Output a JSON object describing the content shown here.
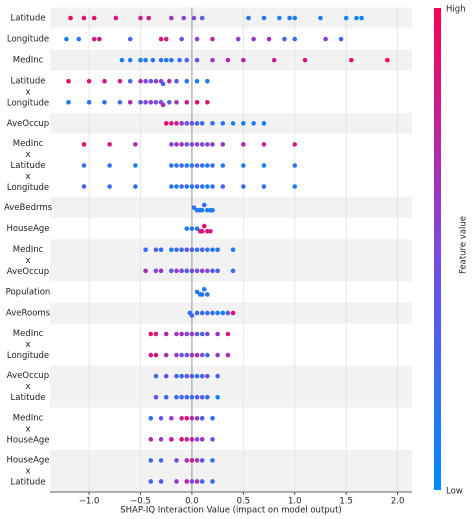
{
  "chart_data": {
    "type": "beeswarm",
    "xlabel": "SHAP-IQ Interaction Value (impact on model output)",
    "xlim": [
      -1.38,
      2.14
    ],
    "xticks": [
      {
        "value": -1.0,
        "label": "−1.0"
      },
      {
        "value": -0.5,
        "label": "−0.5"
      },
      {
        "value": 0.0,
        "label": "0.0"
      },
      {
        "value": 0.5,
        "label": "0.5"
      },
      {
        "value": 1.0,
        "label": "1.0"
      },
      {
        "value": 1.5,
        "label": "1.5"
      },
      {
        "value": 2.0,
        "label": "2.0"
      }
    ],
    "colorbar": {
      "label": "Feature value",
      "high": "High",
      "low": "Low",
      "colors": [
        "#008bfb",
        "#7b48e0",
        "#ff0051"
      ]
    },
    "band_color": "#f2f2f2",
    "groups": [
      {
        "label": [
          "Latitude"
        ],
        "rows": [
          {
            "x": [
              -1.18,
              -1.05,
              -0.95,
              -0.74,
              -0.5,
              -0.42,
              -0.2,
              -0.08,
              0.02,
              0.1,
              0.55,
              0.7,
              0.85,
              0.95,
              1.0,
              1.25,
              1.5,
              1.6,
              1.65
            ],
            "c": [
              0.95,
              0.9,
              0.9,
              0.85,
              0.8,
              0.8,
              0.6,
              0.5,
              0.5,
              0.4,
              0.1,
              0.12,
              0.1,
              0.15,
              0.1,
              0.1,
              0.05,
              0.05,
              0.05
            ]
          }
        ]
      },
      {
        "label": [
          "Longitude"
        ],
        "rows": [
          {
            "x": [
              -1.22,
              -1.1,
              -0.95,
              -0.9,
              -0.6,
              -0.3,
              -0.25,
              -0.1,
              0.05,
              0.2,
              0.45,
              0.6,
              0.75,
              0.9,
              1.0,
              1.3,
              1.45
            ],
            "c": [
              0.1,
              0.15,
              0.8,
              0.85,
              0.3,
              0.85,
              0.8,
              0.5,
              0.6,
              0.7,
              0.55,
              0.6,
              0.65,
              0.3,
              0.2,
              0.6,
              0.3
            ]
          }
        ]
      },
      {
        "label": [
          "MedInc"
        ],
        "rows": [
          {
            "x": [
              -0.68,
              -0.6,
              -0.5,
              -0.45,
              -0.38,
              -0.3,
              -0.25,
              -0.2,
              -0.12,
              -0.05,
              0.05,
              0.2,
              0.35,
              0.5,
              0.8,
              1.1,
              1.55,
              1.9
            ],
            "c": [
              0.1,
              0.1,
              0.1,
              0.15,
              0.15,
              0.2,
              0.1,
              0.15,
              0.2,
              0.3,
              0.45,
              0.6,
              0.7,
              0.75,
              0.8,
              0.85,
              0.9,
              1.0
            ]
          }
        ]
      },
      {
        "label": [
          "Latitude",
          "x",
          "Longitude"
        ],
        "rows": [
          {
            "x": [
              -1.2,
              -1.0,
              -0.85,
              -0.7,
              -0.6,
              -0.5,
              -0.45,
              -0.4,
              -0.35,
              -0.3,
              -0.28,
              -0.22,
              -0.15,
              -0.05,
              0.05,
              0.15
            ],
            "c": [
              0.95,
              0.9,
              0.85,
              0.8,
              0.3,
              0.7,
              0.5,
              0.4,
              0.6,
              0.5,
              0.3,
              0.7,
              0.4,
              0.2,
              0.1,
              0.15
            ]
          },
          {
            "x": [
              -1.2,
              -1.0,
              -0.85,
              -0.7,
              -0.6,
              -0.5,
              -0.45,
              -0.4,
              -0.35,
              -0.3,
              -0.28,
              -0.22,
              -0.15,
              -0.05,
              0.05,
              0.15
            ],
            "c": [
              0.1,
              0.2,
              0.2,
              0.25,
              0.7,
              0.4,
              0.5,
              0.6,
              0.4,
              0.5,
              0.7,
              0.3,
              0.6,
              0.8,
              0.9,
              0.85
            ]
          }
        ]
      },
      {
        "label": [
          "AveOccup"
        ],
        "rows": [
          {
            "x": [
              -0.25,
              -0.2,
              -0.15,
              -0.1,
              -0.05,
              0.0,
              0.05,
              0.1,
              0.2,
              0.3,
              0.4,
              0.5,
              0.6,
              0.7
            ],
            "c": [
              0.9,
              0.85,
              0.8,
              0.6,
              0.5,
              0.4,
              0.3,
              0.25,
              0.2,
              0.15,
              0.1,
              0.1,
              0.1,
              0.05
            ]
          }
        ]
      },
      {
        "label": [
          "MedInc",
          "x",
          "Latitude",
          "x",
          "Longitude"
        ],
        "rows": [
          {
            "x": [
              -1.05,
              -0.8,
              -0.55,
              -0.2,
              -0.15,
              -0.1,
              -0.05,
              0.0,
              0.05,
              0.1,
              0.15,
              0.2,
              0.3,
              0.5,
              0.7,
              1.0
            ],
            "c": [
              0.9,
              0.85,
              0.7,
              0.5,
              0.6,
              0.7,
              0.4,
              0.5,
              0.6,
              0.45,
              0.5,
              0.55,
              0.6,
              0.7,
              0.8,
              0.85
            ]
          },
          {
            "x": [
              -1.05,
              -0.8,
              -0.55,
              -0.2,
              -0.15,
              -0.1,
              -0.05,
              0.0,
              0.05,
              0.1,
              0.15,
              0.2,
              0.3,
              0.5,
              0.7,
              1.0
            ],
            "c": [
              0.2,
              0.2,
              0.1,
              0.2,
              0.15,
              0.3,
              0.1,
              0.2,
              0.3,
              0.15,
              0.1,
              0.2,
              0.15,
              0.1,
              0.1,
              0.2
            ]
          },
          {
            "x": [
              -1.05,
              -0.8,
              -0.55,
              -0.2,
              -0.15,
              -0.1,
              -0.05,
              0.0,
              0.05,
              0.1,
              0.15,
              0.2,
              0.3,
              0.5,
              0.7,
              1.0
            ],
            "c": [
              0.3,
              0.2,
              0.2,
              0.2,
              0.1,
              0.3,
              0.15,
              0.2,
              0.25,
              0.2,
              0.1,
              0.2,
              0.3,
              0.2,
              0.2,
              0.1
            ]
          }
        ]
      },
      {
        "label": [
          "AveBedrms"
        ],
        "rows": [
          {
            "x": [
              0.02,
              0.05,
              0.08,
              0.1,
              0.12,
              0.15,
              0.18,
              0.2
            ],
            "c": [
              0.2,
              0.1,
              0.15,
              0.1,
              0.2,
              0.1,
              0.1,
              0.15
            ]
          }
        ]
      },
      {
        "label": [
          "HouseAge"
        ],
        "rows": [
          {
            "x": [
              -0.05,
              0.0,
              0.05,
              0.08,
              0.1,
              0.12,
              0.15,
              0.18
            ],
            "c": [
              0.1,
              0.15,
              0.2,
              0.8,
              0.85,
              0.9,
              0.9,
              0.8
            ]
          }
        ]
      },
      {
        "label": [
          "MedInc",
          "x",
          "AveOccup"
        ],
        "rows": [
          {
            "x": [
              -0.45,
              -0.35,
              -0.3,
              -0.2,
              -0.15,
              -0.1,
              -0.05,
              0.0,
              0.05,
              0.1,
              0.15,
              0.2,
              0.25,
              0.4
            ],
            "c": [
              0.2,
              0.3,
              0.2,
              0.1,
              0.3,
              0.2,
              0.4,
              0.3,
              0.2,
              0.3,
              0.2,
              0.1,
              0.2,
              0.1
            ]
          },
          {
            "x": [
              -0.45,
              -0.35,
              -0.3,
              -0.2,
              -0.15,
              -0.1,
              -0.05,
              0.0,
              0.05,
              0.1,
              0.15,
              0.2,
              0.25,
              0.4
            ],
            "c": [
              0.7,
              0.5,
              0.6,
              0.4,
              0.6,
              0.5,
              0.3,
              0.5,
              0.4,
              0.6,
              0.5,
              0.4,
              0.3,
              0.2
            ]
          }
        ]
      },
      {
        "label": [
          "Population"
        ],
        "rows": [
          {
            "x": [
              0.05,
              0.08,
              0.1,
              0.12,
              0.15
            ],
            "c": [
              0.1,
              0.2,
              0.15,
              0.1,
              0.2
            ]
          }
        ]
      },
      {
        "label": [
          "AveRooms"
        ],
        "rows": [
          {
            "x": [
              -0.02,
              0.0,
              0.05,
              0.1,
              0.15,
              0.2,
              0.25,
              0.3,
              0.35,
              0.4
            ],
            "c": [
              0.2,
              0.3,
              0.2,
              0.25,
              0.2,
              0.2,
              0.15,
              0.1,
              0.3,
              0.9
            ]
          }
        ]
      },
      {
        "label": [
          "MedInc",
          "x",
          "Longitude"
        ],
        "rows": [
          {
            "x": [
              -0.4,
              -0.35,
              -0.25,
              -0.15,
              -0.1,
              -0.05,
              0.0,
              0.05,
              0.1,
              0.15,
              0.25,
              0.35
            ],
            "c": [
              0.9,
              0.8,
              0.7,
              0.6,
              0.7,
              0.5,
              0.6,
              0.4,
              0.3,
              0.5,
              0.6,
              0.8
            ]
          },
          {
            "x": [
              -0.4,
              -0.35,
              -0.25,
              -0.15,
              -0.1,
              -0.05,
              0.0,
              0.05,
              0.1,
              0.15,
              0.25,
              0.35
            ],
            "c": [
              0.8,
              0.9,
              0.7,
              0.6,
              0.4,
              0.5,
              0.6,
              0.7,
              0.5,
              0.3,
              0.6,
              0.7
            ]
          }
        ]
      },
      {
        "label": [
          "AveOccup",
          "x",
          "Latitude"
        ],
        "rows": [
          {
            "x": [
              -0.35,
              -0.25,
              -0.15,
              -0.1,
              -0.05,
              0.0,
              0.05,
              0.1,
              0.15,
              0.25
            ],
            "c": [
              0.3,
              0.4,
              0.3,
              0.2,
              0.4,
              0.3,
              0.2,
              0.3,
              0.4,
              0.3
            ]
          },
          {
            "x": [
              -0.35,
              -0.25,
              -0.15,
              -0.1,
              -0.05,
              0.0,
              0.05,
              0.1,
              0.15,
              0.25
            ],
            "c": [
              0.4,
              0.3,
              0.2,
              0.3,
              0.3,
              0.2,
              0.4,
              0.3,
              0.2,
              0.1
            ]
          }
        ]
      },
      {
        "label": [
          "MedInc",
          "x",
          "HouseAge"
        ],
        "rows": [
          {
            "x": [
              -0.4,
              -0.3,
              -0.2,
              -0.1,
              -0.05,
              0.0,
              0.05,
              0.1,
              0.2
            ],
            "c": [
              0.2,
              0.4,
              0.6,
              0.8,
              0.9,
              0.7,
              0.6,
              0.3,
              0.2
            ]
          },
          {
            "x": [
              -0.4,
              -0.3,
              -0.2,
              -0.1,
              -0.05,
              0.0,
              0.05,
              0.1,
              0.2
            ],
            "c": [
              0.7,
              0.6,
              0.8,
              0.9,
              0.7,
              0.8,
              0.5,
              0.6,
              0.4
            ]
          }
        ]
      },
      {
        "label": [
          "HouseAge",
          "x",
          "Latitude"
        ],
        "rows": [
          {
            "x": [
              -0.4,
              -0.3,
              -0.15,
              -0.05,
              0.0,
              0.05,
              0.1,
              0.2
            ],
            "c": [
              0.2,
              0.3,
              0.5,
              0.7,
              0.8,
              0.6,
              0.4,
              0.2
            ]
          },
          {
            "x": [
              -0.4,
              -0.3,
              -0.15,
              -0.05,
              0.0,
              0.05,
              0.1,
              0.2
            ],
            "c": [
              0.3,
              0.4,
              0.6,
              0.7,
              0.5,
              0.6,
              0.3,
              0.2
            ]
          }
        ]
      }
    ]
  }
}
